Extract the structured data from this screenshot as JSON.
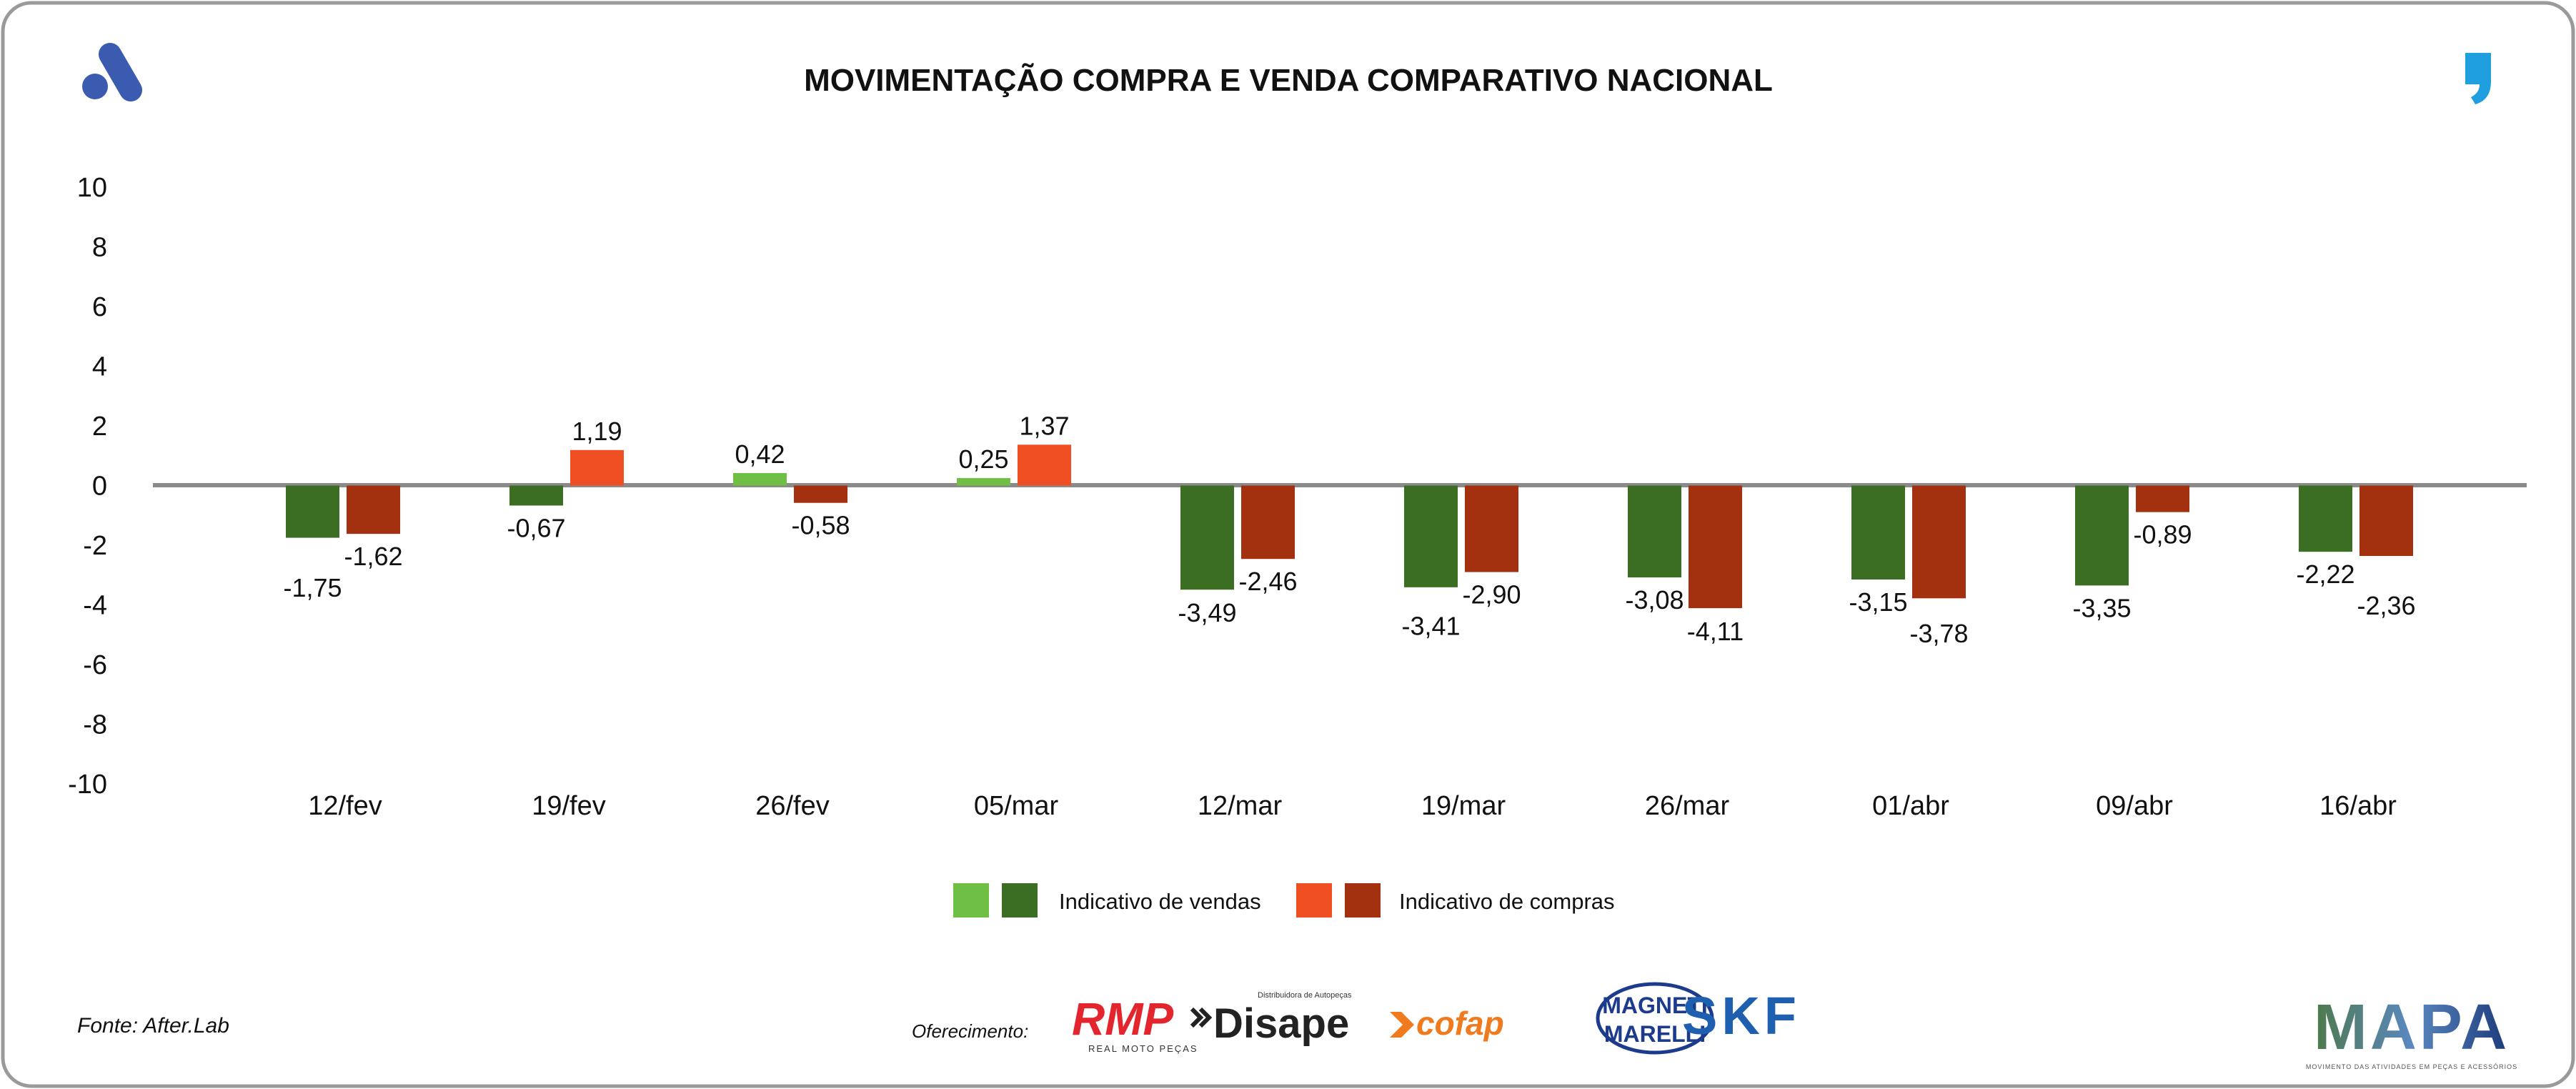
{
  "header": {
    "title": "MOVIMENTAÇÃO COMPRA E VENDA COMPARATIVO NACIONAL",
    "left_logo_icon": "afterlab-logo-icon",
    "right_logo_icon": "quote-mark-icon"
  },
  "chart_data": {
    "type": "bar",
    "title": "MOVIMENTAÇÃO COMPRA E VENDA COMPARATIVO NACIONAL",
    "xlabel": "",
    "ylabel": "",
    "ylim": [
      -10,
      10
    ],
    "yticks": [
      "10",
      "8",
      "6",
      "4",
      "2",
      "0",
      "-2",
      "-4",
      "-6",
      "-8",
      "-10"
    ],
    "ytick_values": [
      10,
      8,
      6,
      4,
      2,
      0,
      -2,
      -4,
      -6,
      -8,
      -10
    ],
    "grid": false,
    "legend_position": "bottom-center",
    "categories": [
      "12/fev",
      "19/fev",
      "26/fev",
      "05/mar",
      "12/mar",
      "19/mar",
      "26/mar",
      "01/abr",
      "09/abr",
      "16/abr"
    ],
    "series": [
      {
        "name": "Indicativo de vendas",
        "values": [
          -1.75,
          -0.67,
          0.42,
          0.25,
          -3.49,
          -3.41,
          -3.08,
          -3.15,
          -3.35,
          -2.22
        ],
        "labels": [
          "-1,75",
          "-0,67",
          "0,42",
          "0,25",
          "-3,49",
          "-3,41",
          "-3,08",
          "-3,15",
          "-3,35",
          "-2,22"
        ],
        "color_positive": "#6fbf44",
        "color_negative": "#3b6e22"
      },
      {
        "name": "Indicativo de compras",
        "values": [
          -1.62,
          1.19,
          -0.58,
          1.37,
          -2.46,
          -2.9,
          -4.11,
          -3.78,
          -0.89,
          -2.36
        ],
        "labels": [
          "-1,62",
          "1,19",
          "-0,58",
          "1,37",
          "-2,46",
          "-2,90",
          "-4,11",
          "-3,78",
          "-0,89",
          "-2,36"
        ],
        "color_positive": "#f04e23",
        "color_negative": "#a3310f"
      }
    ]
  },
  "legend": {
    "sales_label": "Indicativo de vendas",
    "purchases_label": "Indicativo de compras"
  },
  "footer": {
    "source": "Fonte: After.Lab",
    "sponsor_label": "Oferecimento:",
    "sponsors": [
      "RMP",
      "REAL MOTO PEÇAS",
      "Disape",
      "Distribuidora de Autopeças",
      "cofap",
      "MAGNETI",
      "MARELLI",
      "SKF"
    ],
    "mapa_logo": "MAPA",
    "mapa_tagline": "MOVIMENTO DAS ATIVIDADES EM PEÇAS E ACESSÓRIOS"
  },
  "colors": {
    "accent_blue": "#3a5bb0",
    "quote_blue": "#1f9ee0",
    "axis_gray": "#8a8a8a"
  }
}
